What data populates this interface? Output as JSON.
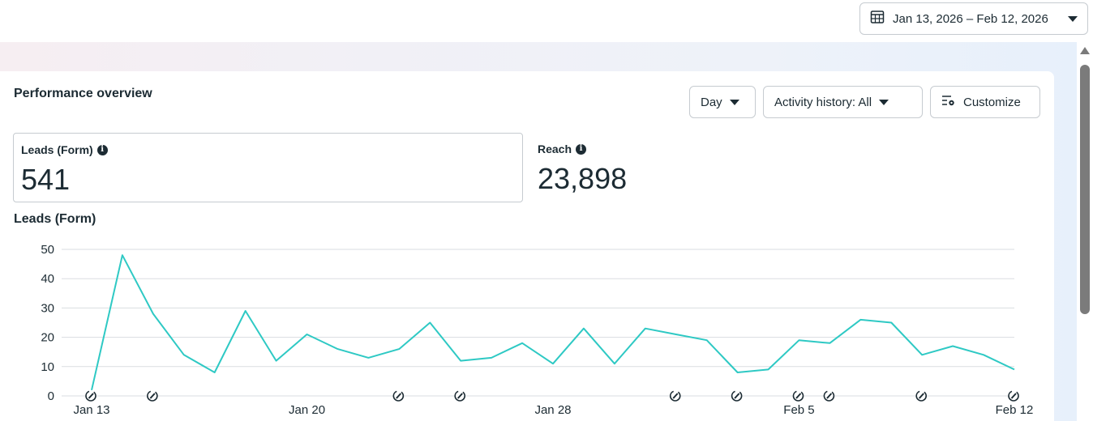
{
  "header": {
    "date_range": "Jan 13, 2026 – Feb 12, 2026",
    "calendar_icon": "calendar-icon",
    "caret_icon": "caret-down-icon"
  },
  "panel": {
    "title": "Performance overview",
    "controls": {
      "day_label": "Day",
      "activity_label": "Activity history: All",
      "customize_label": "Customize",
      "customize_icon": "sliders-gear-icon"
    },
    "metrics": [
      {
        "label": "Leads (Form)",
        "value": "541",
        "info_icon": "info-icon"
      },
      {
        "label": "Reach",
        "value": "23,898",
        "info_icon": "info-icon"
      }
    ],
    "chart_title": "Leads (Form)"
  },
  "colors": {
    "line": "#2ec9c4",
    "grid": "#dadde1",
    "text": "#1c2b33",
    "border": "#c6cbd0"
  },
  "chart_data": {
    "type": "line",
    "title": "Leads (Form)",
    "x": [
      "Jan 13",
      "Jan 14",
      "Jan 15",
      "Jan 16",
      "Jan 17",
      "Jan 18",
      "Jan 19",
      "Jan 20",
      "Jan 21",
      "Jan 22",
      "Jan 23",
      "Jan 24",
      "Jan 25",
      "Jan 26",
      "Jan 27",
      "Jan 28",
      "Jan 29",
      "Jan 30",
      "Jan 31",
      "Feb 1",
      "Feb 2",
      "Feb 3",
      "Feb 4",
      "Feb 5",
      "Feb 6",
      "Feb 7",
      "Feb 8",
      "Feb 9",
      "Feb 10",
      "Feb 11",
      "Feb 12"
    ],
    "series": [
      {
        "values": [
          2,
          48,
          28,
          14,
          8,
          29,
          12,
          21,
          16,
          13,
          16,
          25,
          12,
          13,
          18,
          11,
          23,
          11,
          23,
          21,
          19,
          8,
          9,
          19,
          18,
          26,
          25,
          14,
          17,
          14,
          9
        ]
      }
    ],
    "x_tick_labels": [
      "Jan 13",
      "Jan 20",
      "Jan 28",
      "Feb 5",
      "Feb 12"
    ],
    "y_ticks": [
      0,
      10,
      20,
      30,
      40,
      50
    ],
    "ylim": [
      0,
      50
    ],
    "grid": true,
    "activity_markers_dates": [
      "Jan 13",
      "Jan 15",
      "Jan 23",
      "Jan 25",
      "Feb 1",
      "Feb 3",
      "Feb 5",
      "Feb 6",
      "Feb 9",
      "Feb 12"
    ],
    "activity_marker_icon": "edit-history-icon"
  }
}
